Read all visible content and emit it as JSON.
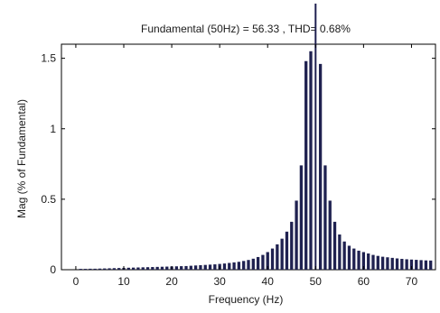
{
  "chart_data": {
    "type": "bar",
    "title": "Fundamental (50Hz) = 56.33 , THD= 0.68%",
    "xlabel": "Frequency (Hz)",
    "ylabel": "Mag (% of Fundamental)",
    "xlim": [
      -3,
      75
    ],
    "ylim": [
      0,
      1.6
    ],
    "x_ticks": [
      0,
      10,
      20,
      30,
      40,
      50,
      60,
      70
    ],
    "y_ticks": [
      0,
      0.5,
      1,
      1.5
    ],
    "y_tick_labels": [
      "0",
      "0.5",
      "1",
      "1.5"
    ],
    "grid": false,
    "bar_color": "#1f2150",
    "fundamental_hz": 50,
    "x": [
      1,
      2,
      3,
      4,
      5,
      6,
      7,
      8,
      9,
      10,
      11,
      12,
      13,
      14,
      15,
      16,
      17,
      18,
      19,
      20,
      21,
      22,
      23,
      24,
      25,
      26,
      27,
      28,
      29,
      30,
      31,
      32,
      33,
      34,
      35,
      36,
      37,
      38,
      39,
      40,
      41,
      42,
      43,
      44,
      45,
      46,
      47,
      48,
      49,
      51,
      52,
      53,
      54,
      55,
      56,
      57,
      58,
      59,
      60,
      61,
      62,
      63,
      64,
      65,
      66,
      67,
      68,
      69,
      70,
      71,
      72,
      73,
      74
    ],
    "values": [
      0.006,
      0.006,
      0.007,
      0.007,
      0.008,
      0.009,
      0.01,
      0.011,
      0.012,
      0.013,
      0.014,
      0.015,
      0.016,
      0.017,
      0.018,
      0.019,
      0.02,
      0.021,
      0.022,
      0.023,
      0.024,
      0.025,
      0.026,
      0.028,
      0.03,
      0.032,
      0.034,
      0.036,
      0.038,
      0.041,
      0.044,
      0.048,
      0.052,
      0.056,
      0.062,
      0.069,
      0.078,
      0.09,
      0.105,
      0.125,
      0.15,
      0.18,
      0.22,
      0.27,
      0.34,
      0.49,
      0.74,
      1.48,
      1.55,
      1.46,
      0.74,
      0.49,
      0.34,
      0.25,
      0.2,
      0.17,
      0.15,
      0.135,
      0.125,
      0.115,
      0.105,
      0.098,
      0.092,
      0.088,
      0.084,
      0.08,
      0.077,
      0.074,
      0.072,
      0.07,
      0.068,
      0.066,
      0.065
    ]
  }
}
